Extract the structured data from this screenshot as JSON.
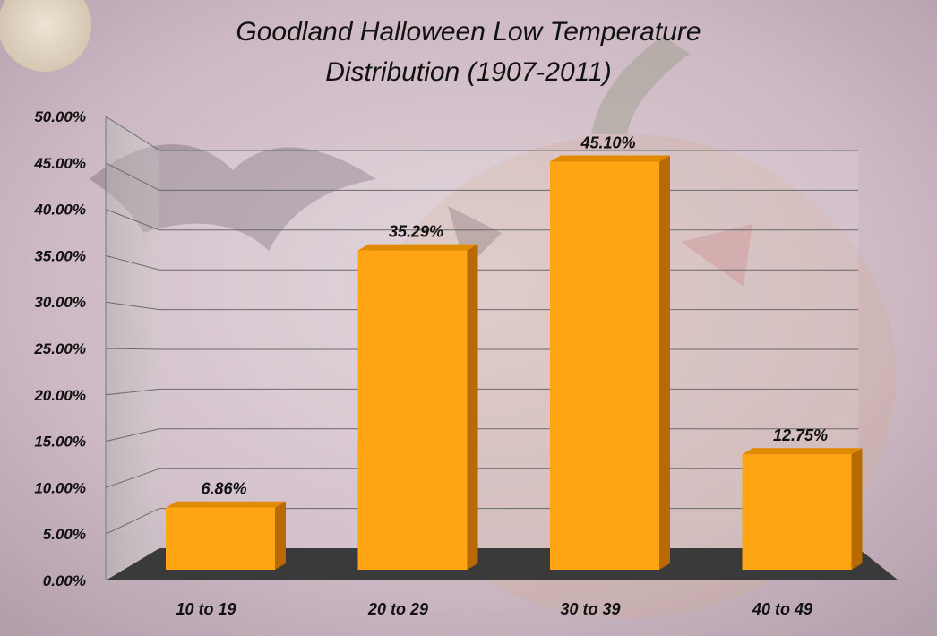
{
  "chart_data": {
    "type": "bar",
    "title": [
      "Goodland Halloween Low Temperature",
      "Distribution (1907-2011)"
    ],
    "categories": [
      "10 to 19",
      "20 to 29",
      "30 to 39",
      "40 to 49"
    ],
    "values": [
      6.86,
      35.29,
      45.1,
      12.75
    ],
    "data_labels": [
      "6.86%",
      "35.29%",
      "45.10%",
      "12.75%"
    ],
    "ylim": [
      0,
      50
    ],
    "ytick_values": [
      0,
      5,
      10,
      15,
      20,
      25,
      30,
      35,
      40,
      45,
      50
    ],
    "ytick_labels": [
      "0.00%",
      "5.00%",
      "10.00%",
      "15.00%",
      "20.00%",
      "25.00%",
      "30.00%",
      "35.00%",
      "40.00%",
      "45.00%",
      "50.00%"
    ],
    "xlabel": "",
    "ylabel": "",
    "grid": true,
    "legend": "none",
    "bar_color": "#ffa412",
    "bar_side_color": "#b86a00",
    "bar_top_color": "#e08a00",
    "floor_color": "#3a3a3a"
  }
}
